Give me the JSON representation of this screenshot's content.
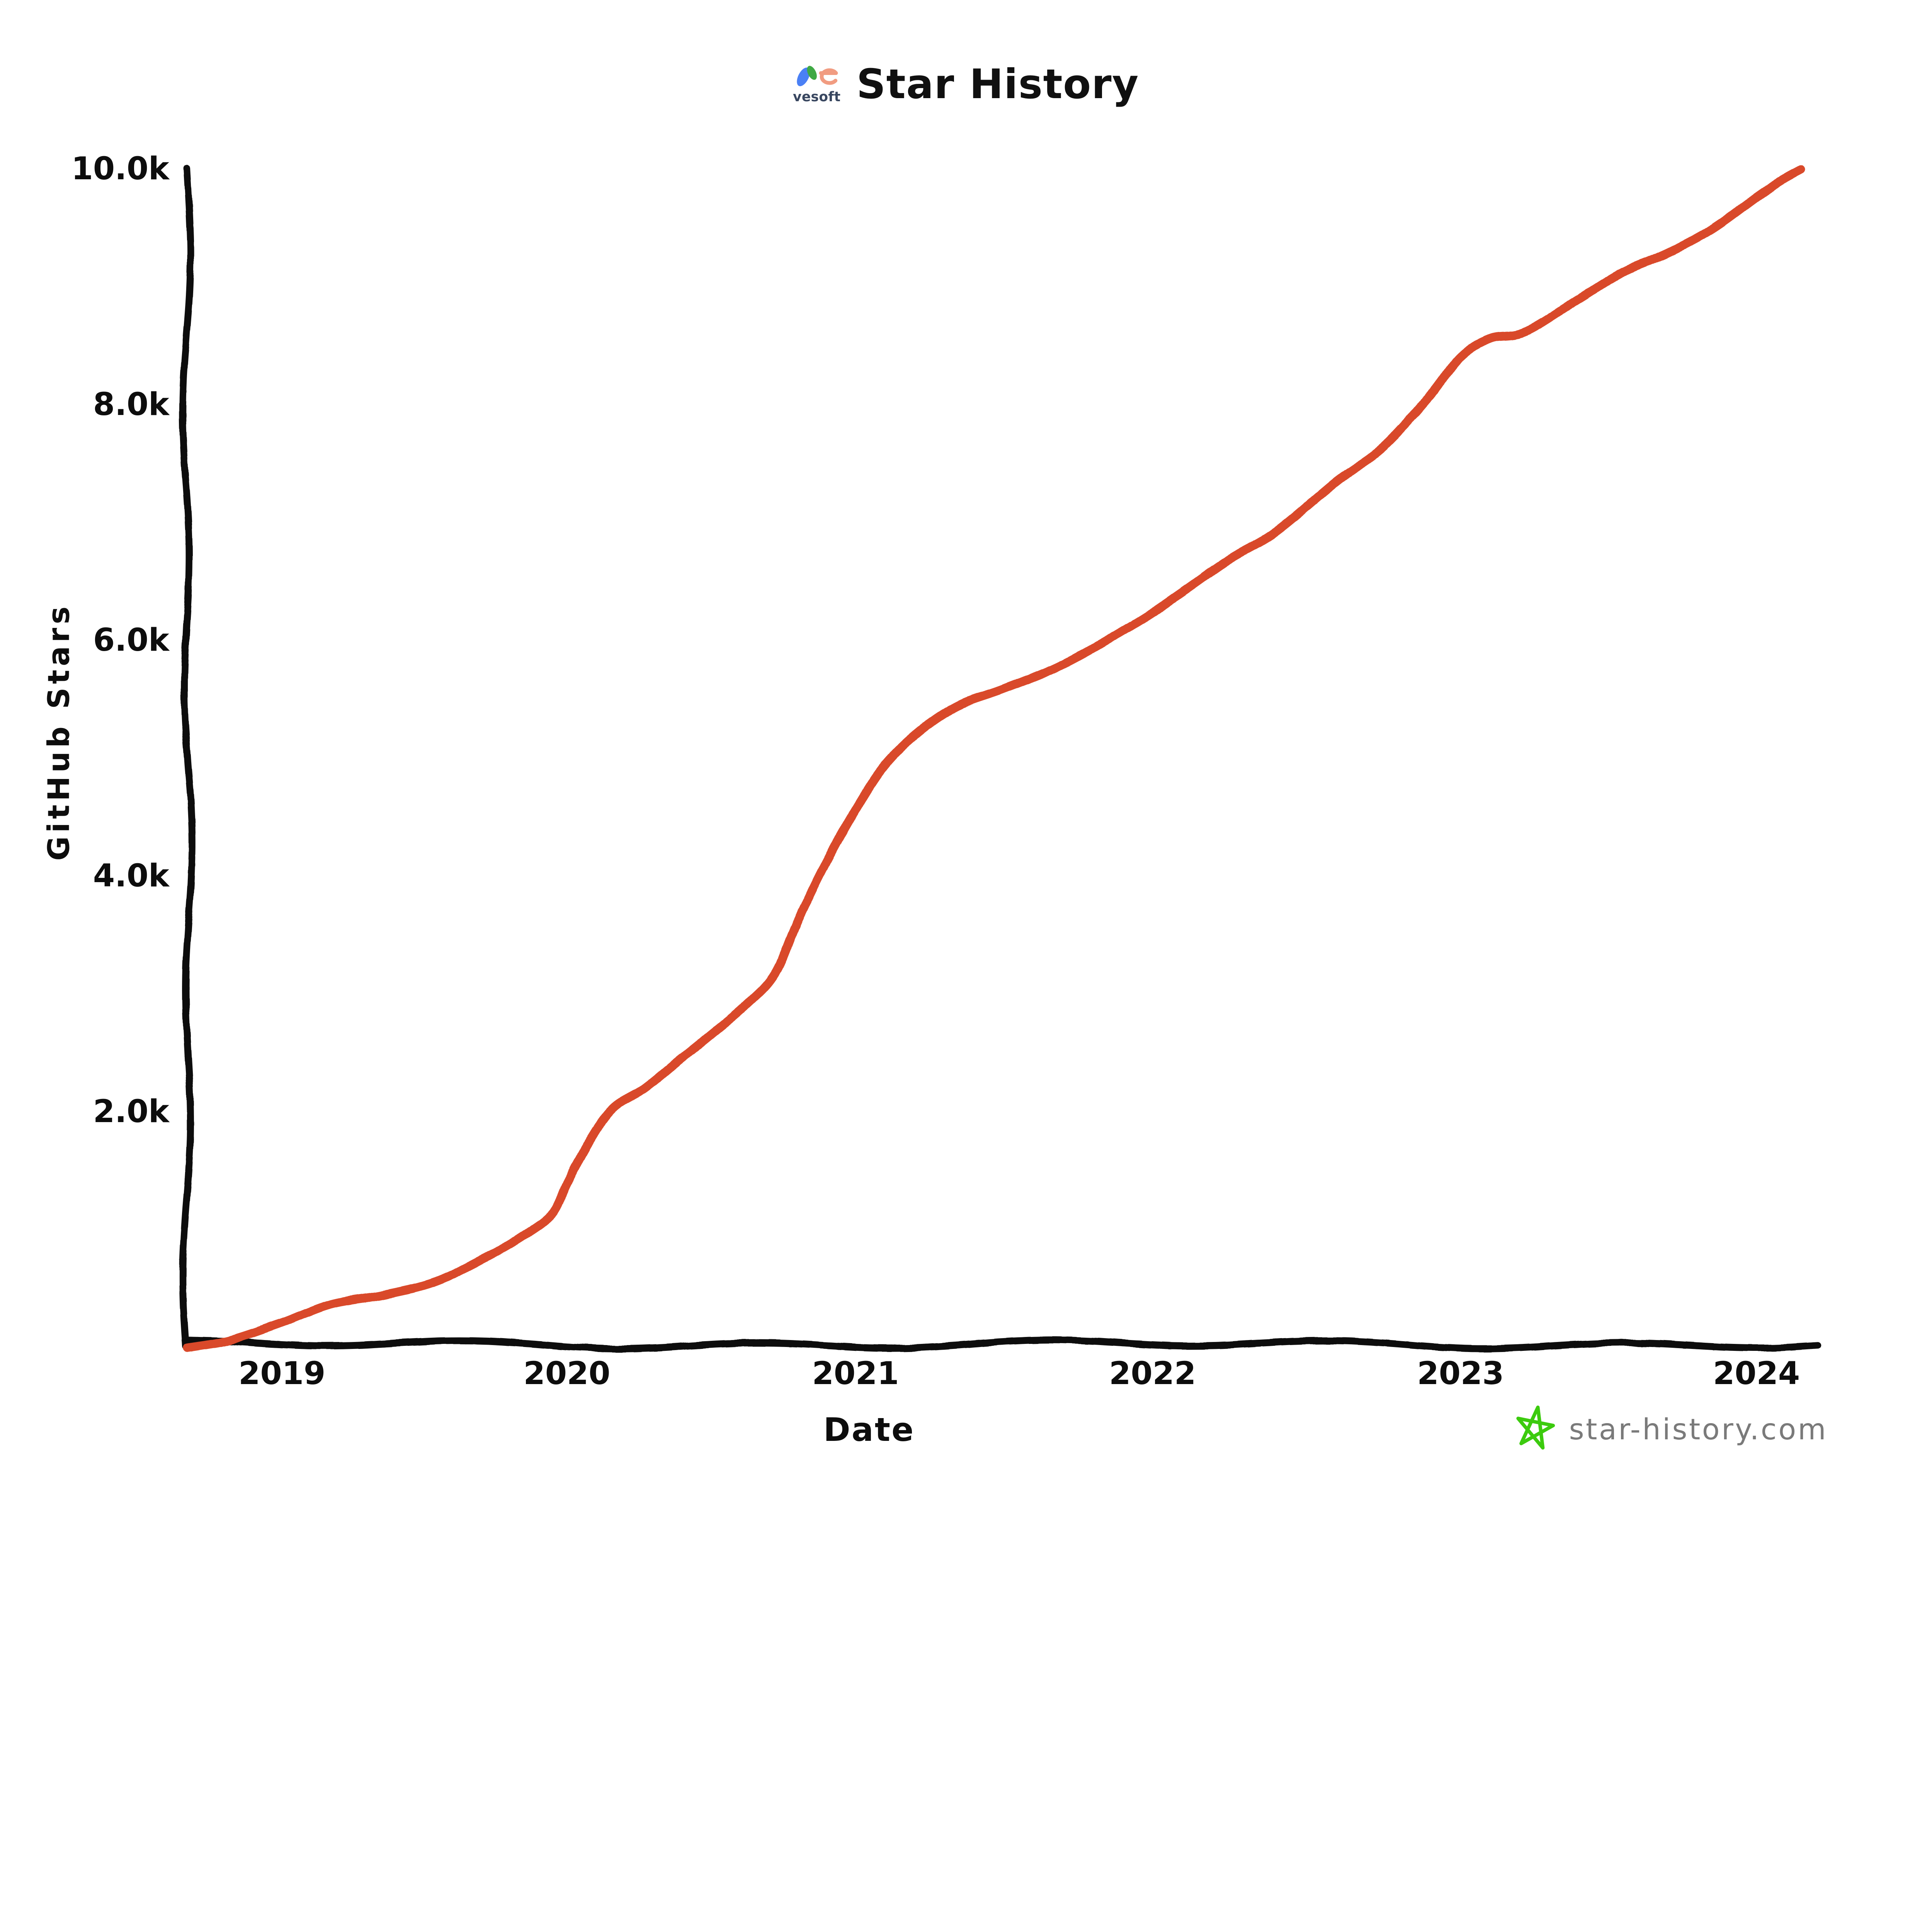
{
  "header": {
    "logo_label": "vesoft",
    "title": "Star History"
  },
  "chart_data": {
    "type": "line",
    "title": "Star History",
    "xlabel": "Date",
    "ylabel": "GitHub Stars",
    "grid": false,
    "legend": "none",
    "xlim": [
      2018.68,
      2024.2
    ],
    "ylim": [
      0,
      10000
    ],
    "x_ticks": [
      2019,
      2020,
      2021,
      2022,
      2023,
      2024
    ],
    "x_tick_labels": [
      "2019",
      "2020",
      "2021",
      "2022",
      "2023",
      "2024"
    ],
    "y_ticks": [
      2000,
      4000,
      6000,
      8000,
      10000
    ],
    "y_tick_labels": [
      "2.0k",
      "4.0k",
      "6.0k",
      "8.0k",
      "10.0k"
    ],
    "series": [
      {
        "color": "#d9482a",
        "points": [
          [
            2018.68,
            0
          ],
          [
            2018.82,
            70
          ],
          [
            2019.0,
            210
          ],
          [
            2019.17,
            360
          ],
          [
            2019.35,
            450
          ],
          [
            2019.53,
            560
          ],
          [
            2019.7,
            740
          ],
          [
            2019.85,
            950
          ],
          [
            2019.95,
            1150
          ],
          [
            2020.0,
            1400
          ],
          [
            2020.08,
            1750
          ],
          [
            2020.16,
            2030
          ],
          [
            2020.27,
            2210
          ],
          [
            2020.38,
            2420
          ],
          [
            2020.5,
            2650
          ],
          [
            2020.62,
            2910
          ],
          [
            2020.72,
            3180
          ],
          [
            2020.8,
            3620
          ],
          [
            2020.9,
            4120
          ],
          [
            2021.0,
            4570
          ],
          [
            2021.1,
            4950
          ],
          [
            2021.22,
            5230
          ],
          [
            2021.35,
            5450
          ],
          [
            2021.5,
            5600
          ],
          [
            2021.7,
            5800
          ],
          [
            2021.95,
            6150
          ],
          [
            2022.1,
            6420
          ],
          [
            2022.25,
            6700
          ],
          [
            2022.4,
            6920
          ],
          [
            2022.6,
            7350
          ],
          [
            2022.75,
            7650
          ],
          [
            2022.9,
            8080
          ],
          [
            2023.0,
            8400
          ],
          [
            2023.1,
            8560
          ],
          [
            2023.22,
            8630
          ],
          [
            2023.4,
            8900
          ],
          [
            2023.55,
            9120
          ],
          [
            2023.7,
            9290
          ],
          [
            2023.85,
            9500
          ],
          [
            2024.0,
            9760
          ],
          [
            2024.08,
            9890
          ],
          [
            2024.15,
            10000
          ]
        ]
      }
    ]
  },
  "watermark": {
    "label": "star-history.com"
  },
  "colors": {
    "series": "#d9482a",
    "axis": "#0d0d0d",
    "star_icon": "#3ccb0e",
    "watermark_text": "#7a7a7a",
    "logo_blue": "#4a80f5",
    "logo_green": "#3fa944",
    "logo_salmon": "#f19c81",
    "background": "#ffffff"
  }
}
